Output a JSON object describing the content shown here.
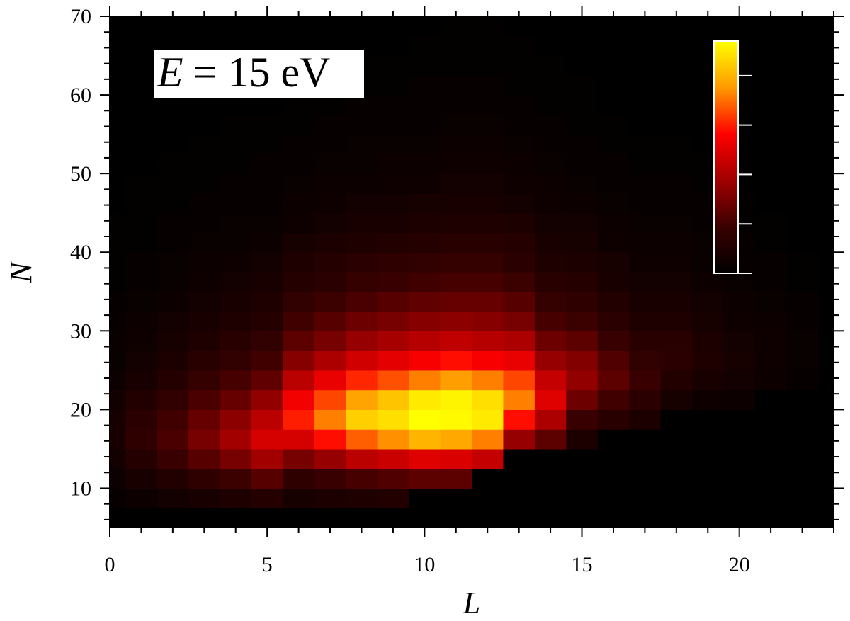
{
  "chart_data": {
    "type": "heatmap",
    "annotation": [
      "E",
      "= 15 eV"
    ],
    "xlabel": "L",
    "ylabel": "N",
    "x": [
      0,
      1,
      2,
      3,
      4,
      5,
      6,
      7,
      8,
      9,
      10,
      11,
      12,
      13,
      14,
      15,
      16,
      17,
      18,
      19,
      20,
      21,
      22
    ],
    "ybins": [
      5,
      7.5,
      10,
      12.5,
      15,
      17.5,
      20,
      22.5,
      25,
      27.5,
      30,
      32.5,
      35,
      37.5,
      40,
      42.5,
      45,
      47.5,
      50,
      52.5,
      55,
      57.5,
      60,
      62.5,
      65,
      67.5,
      70
    ],
    "z": [
      [
        0,
        2,
        4,
        6,
        8,
        7,
        6,
        4,
        3,
        3,
        2,
        2,
        1,
        1,
        1,
        1,
        0,
        0,
        0,
        0,
        0,
        0,
        0,
        0,
        0,
        0
      ],
      [
        0,
        4,
        8,
        12,
        15,
        14,
        11,
        8,
        6,
        5,
        4,
        3,
        2,
        2,
        1,
        1,
        1,
        1,
        0,
        0,
        0,
        0,
        0,
        0,
        0,
        0
      ],
      [
        0,
        6,
        11,
        18,
        22,
        20,
        16,
        12,
        9,
        7,
        6,
        4,
        3,
        3,
        2,
        2,
        1,
        1,
        1,
        0,
        0,
        0,
        0,
        0,
        0,
        0
      ],
      [
        0,
        8,
        15,
        24,
        30,
        27,
        22,
        17,
        13,
        10,
        8,
        6,
        5,
        4,
        3,
        2,
        2,
        1,
        1,
        1,
        0,
        0,
        0,
        0,
        0,
        0
      ],
      [
        0,
        10,
        19,
        30,
        38,
        34,
        27,
        21,
        16,
        13,
        10,
        8,
        6,
        5,
        3,
        3,
        2,
        2,
        1,
        1,
        1,
        0,
        0,
        0,
        0,
        0
      ],
      [
        0,
        12,
        24,
        38,
        48,
        43,
        35,
        26,
        20,
        16,
        12,
        10,
        8,
        6,
        4,
        3,
        2,
        2,
        2,
        1,
        1,
        0,
        0,
        0,
        0,
        0
      ],
      [
        0,
        7,
        15,
        30,
        48,
        60,
        54,
        43,
        33,
        25,
        20,
        16,
        12,
        10,
        7,
        5,
        4,
        3,
        2,
        2,
        1,
        1,
        0,
        0,
        0,
        0
      ],
      [
        0,
        9,
        18,
        36,
        58,
        72,
        65,
        52,
        40,
        30,
        24,
        19,
        14,
        12,
        9,
        6,
        5,
        4,
        3,
        2,
        2,
        1,
        1,
        0,
        0,
        0
      ],
      [
        0,
        10,
        21,
        43,
        68,
        85,
        77,
        61,
        47,
        36,
        28,
        22,
        17,
        14,
        10,
        8,
        6,
        4,
        3,
        3,
        2,
        2,
        1,
        1,
        0,
        0
      ],
      [
        0,
        11,
        23,
        46,
        74,
        88,
        83,
        66,
        51,
        39,
        30,
        24,
        18,
        15,
        11,
        8,
        6,
        5,
        4,
        3,
        2,
        2,
        1,
        1,
        0,
        0
      ],
      [
        0,
        0,
        25,
        50,
        80,
        94,
        90,
        72,
        55,
        42,
        33,
        26,
        20,
        16,
        12,
        9,
        7,
        5,
        4,
        3,
        2,
        2,
        2,
        1,
        1,
        0
      ],
      [
        0,
        0,
        25,
        49,
        78,
        93,
        92,
        76,
        58,
        44,
        34,
        27,
        21,
        17,
        13,
        10,
        8,
        6,
        5,
        4,
        3,
        2,
        2,
        1,
        1,
        1
      ],
      [
        0,
        0,
        0,
        45,
        72,
        90,
        88,
        72,
        55,
        42,
        33,
        27,
        21,
        17,
        13,
        10,
        8,
        6,
        5,
        4,
        3,
        2,
        2,
        1,
        1,
        1
      ],
      [
        0,
        0,
        0,
        0,
        36,
        58,
        72,
        65,
        52,
        40,
        30,
        24,
        19,
        14,
        12,
        9,
        6,
        5,
        4,
        3,
        2,
        2,
        1,
        1,
        1,
        0
      ],
      [
        0,
        0,
        0,
        0,
        25,
        40,
        50,
        45,
        36,
        28,
        21,
        17,
        13,
        10,
        8,
        6,
        5,
        4,
        3,
        2,
        2,
        1,
        1,
        1,
        0,
        0
      ],
      [
        0,
        0,
        0,
        0,
        9,
        18,
        28,
        35,
        32,
        25,
        19,
        15,
        12,
        9,
        7,
        6,
        4,
        3,
        2,
        2,
        1,
        1,
        1,
        0,
        0,
        0
      ],
      [
        0,
        0,
        0,
        0,
        0,
        13,
        20,
        25,
        23,
        18,
        14,
        11,
        8,
        7,
        5,
        4,
        3,
        2,
        2,
        1,
        1,
        0,
        0,
        0,
        0,
        0
      ],
      [
        0,
        0,
        0,
        0,
        0,
        9,
        14,
        18,
        16,
        13,
        10,
        8,
        6,
        5,
        4,
        3,
        2,
        2,
        1,
        1,
        0,
        0,
        0,
        0,
        0,
        0
      ],
      [
        0,
        0,
        0,
        0,
        0,
        0,
        7,
        11,
        14,
        13,
        10,
        8,
        6,
        5,
        4,
        3,
        2,
        2,
        1,
        1,
        0,
        0,
        0,
        0,
        0,
        0
      ],
      [
        0,
        0,
        0,
        0,
        0,
        0,
        5,
        8,
        10,
        9,
        7,
        6,
        4,
        3,
        3,
        2,
        2,
        1,
        1,
        0,
        0,
        0,
        0,
        0,
        0,
        0
      ],
      [
        0,
        0,
        0,
        0,
        0,
        0,
        4,
        6,
        7,
        6,
        5,
        4,
        3,
        2,
        2,
        1,
        1,
        0,
        0,
        0,
        0,
        0,
        0,
        0,
        0,
        0
      ],
      [
        0,
        0,
        0,
        0,
        0,
        0,
        0,
        4,
        5,
        5,
        4,
        3,
        2,
        2,
        1,
        1,
        0,
        0,
        0,
        0,
        0,
        0,
        0,
        0,
        0,
        0
      ],
      [
        0,
        0,
        0,
        0,
        0,
        0,
        0,
        2,
        3,
        3,
        2,
        2,
        1,
        1,
        0,
        0,
        0,
        0,
        0,
        0,
        0,
        0,
        0,
        0,
        0,
        0
      ]
    ],
    "zlim": [
      0,
      94
    ],
    "zticks": [
      0,
      20,
      40,
      60,
      80
    ],
    "colorscale": [
      [
        0,
        "#000000"
      ],
      [
        0.2,
        "#3a0000"
      ],
      [
        0.4,
        "#a00000"
      ],
      [
        0.6,
        "#ff0000"
      ],
      [
        0.8,
        "#ff9a00"
      ],
      [
        1,
        "#ffff00"
      ]
    ],
    "background": "#000000",
    "xlim": [
      0,
      23
    ],
    "ylim": [
      5,
      70
    ],
    "xticks": [
      0,
      5,
      10,
      15,
      20
    ],
    "yticks": [
      10,
      20,
      30,
      40,
      50,
      60,
      70
    ],
    "xminorticks": [
      1,
      2,
      3,
      4,
      6,
      7,
      8,
      9,
      11,
      12,
      13,
      14,
      16,
      17,
      18,
      19,
      21,
      22,
      23
    ],
    "yminorticks": [
      6,
      8,
      12,
      14,
      16,
      18,
      22,
      24,
      26,
      28,
      32,
      34,
      36,
      38,
      42,
      44,
      46,
      48,
      52,
      54,
      56,
      58,
      62,
      64,
      66,
      68
    ]
  }
}
